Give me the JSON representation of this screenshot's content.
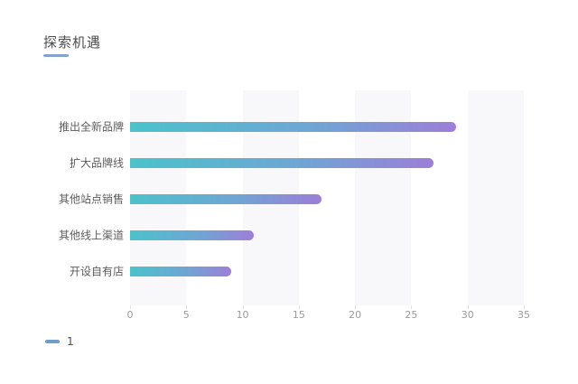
{
  "page": {
    "background": "#ffffff"
  },
  "header": {
    "title": "探索机遇",
    "underline_color": "#84a4cc"
  },
  "legend": {
    "items": [
      {
        "label": "1",
        "marker_color": "#6f9cca"
      }
    ]
  },
  "chart_data": {
    "type": "bar",
    "orientation": "horizontal",
    "title": "探索机遇",
    "categories": [
      "推出全新品牌",
      "扩大品牌线",
      "其他站点销售",
      "其他线上渠道",
      "开设自有店"
    ],
    "series": [
      {
        "name": "1",
        "values": [
          29,
          27,
          17,
          11,
          9
        ]
      }
    ],
    "values": [
      29,
      27,
      17,
      11,
      9
    ],
    "xlabel": "",
    "ylabel": "",
    "xlim": [
      0,
      35
    ],
    "x_ticks": [
      0,
      5,
      10,
      15,
      20,
      25,
      30,
      35
    ],
    "grid": "alternating-column-bands",
    "band_color": "#f8f8fb",
    "bar_gradient_start": "#4bc2ca",
    "bar_gradient_end": "#9d7ed8",
    "legend_position": "bottom-left"
  }
}
